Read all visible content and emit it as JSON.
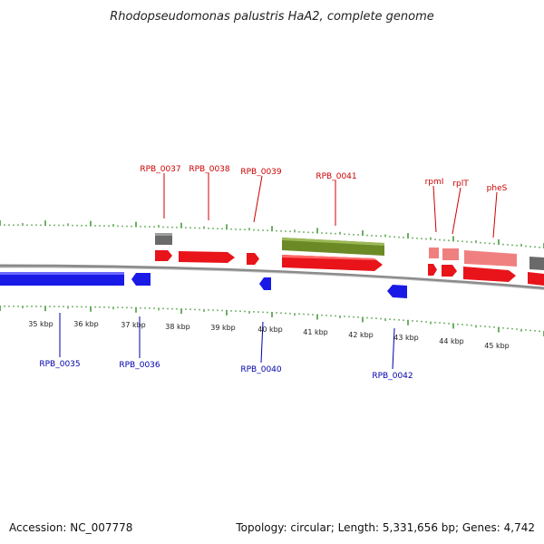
{
  "title": "Rhodopseudomonas palustris HaA2, complete genome",
  "footer": {
    "accession": "Accession: NC_007778",
    "summary": "Topology: circular; Length: 5,331,656 bp; Genes: 4,742"
  },
  "colors": {
    "forward_gene": "#e8141a",
    "reverse_gene": "#1a1ae6",
    "rna_gene": "#f08080",
    "highlight": "#6b8a26",
    "pseudo": "#666666",
    "tick": "#2e8b22",
    "label_forward": "#cc0000",
    "label_reverse": "#0000aa"
  },
  "kbp_labels": [
    "35 kbp",
    "36 kbp",
    "37 kbp",
    "38 kbp",
    "39 kbp",
    "40 kbp",
    "41 kbp",
    "42 kbp",
    "43 kbp",
    "44 kbp",
    "45 kbp"
  ],
  "forward_labels": [
    {
      "name": "RPB_0037",
      "text": "RPB_0037"
    },
    {
      "name": "RPB_0038",
      "text": "RPB_0038"
    },
    {
      "name": "RPB_0039",
      "text": "RPB_0039"
    },
    {
      "name": "RPB_0041",
      "text": "RPB_0041"
    },
    {
      "name": "rpmI",
      "text": "rpmI"
    },
    {
      "name": "rplT",
      "text": "rplT"
    },
    {
      "name": "pheS",
      "text": "pheS"
    }
  ],
  "reverse_labels": [
    {
      "name": "RPB_0035",
      "text": "RPB_0035"
    },
    {
      "name": "RPB_0036",
      "text": "RPB_0036"
    },
    {
      "name": "RPB_0040",
      "text": "RPB_0040"
    },
    {
      "name": "RPB_0042",
      "text": "RPB_0042"
    }
  ]
}
